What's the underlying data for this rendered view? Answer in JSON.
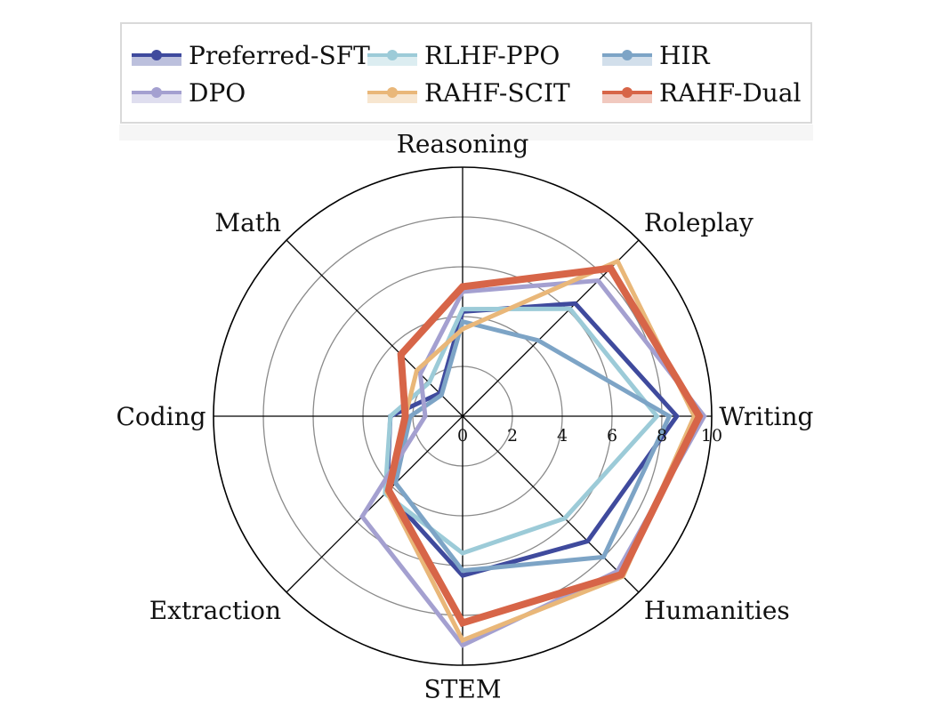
{
  "chart_data": {
    "type": "radar",
    "axes": [
      "Writing",
      "Roleplay",
      "Reasoning",
      "Math",
      "Coding",
      "Extraction",
      "STEM",
      "Humanities"
    ],
    "rlim": [
      0,
      10
    ],
    "ticks": [
      "0",
      "2",
      "4",
      "6",
      "8",
      "10"
    ],
    "tick_values": [
      0,
      2,
      4,
      6,
      8,
      10
    ],
    "grid": true,
    "legend_position": "top",
    "series": [
      {
        "name": "Preferred-SFT",
        "color": "#3f4a9d",
        "values": [
          8.6,
          6.4,
          4.2,
          1.3,
          2.9,
          4.3,
          6.4,
          7.1
        ]
      },
      {
        "name": "RLHF-PPO",
        "color": "#9ccbd8",
        "values": [
          7.8,
          6.1,
          4.3,
          1.9,
          2.9,
          4.4,
          5.5,
          5.8
        ]
      },
      {
        "name": "HIR",
        "color": "#7da4c6",
        "values": [
          8.3,
          4.3,
          3.8,
          1.2,
          2.1,
          3.8,
          6.2,
          8.0
        ]
      },
      {
        "name": "DPO",
        "color": "#a4a0d0",
        "values": [
          9.7,
          7.7,
          5.0,
          2.4,
          1.5,
          5.7,
          9.2,
          8.8
        ]
      },
      {
        "name": "RAHF-SCIT",
        "color": "#e9b779",
        "values": [
          9.3,
          8.8,
          3.5,
          2.6,
          2.3,
          4.3,
          9.0,
          9.1
        ]
      },
      {
        "name": "RAHF-Dual",
        "color": "#d76548",
        "values": [
          9.5,
          8.4,
          5.2,
          3.5,
          2.3,
          4.2,
          8.3,
          9.0
        ]
      }
    ]
  }
}
